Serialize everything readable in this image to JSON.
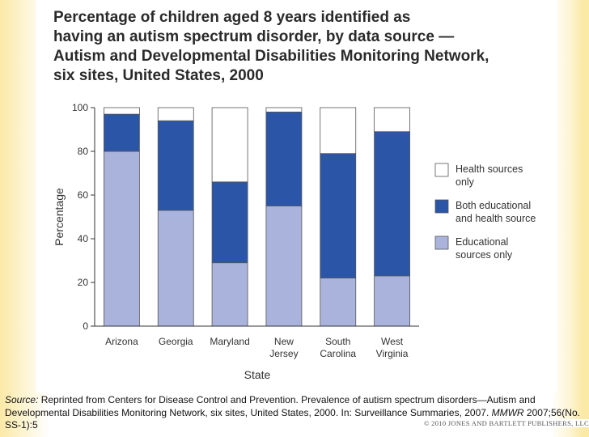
{
  "chart_data": {
    "type": "bar",
    "stacked": true,
    "title_lines": [
      "Percentage of children aged 8 years identified as",
      "having an autism spectrum disorder, by data source —",
      "Autism and Developmental Disabilities Monitoring Network,",
      "six sites, United States, 2000"
    ],
    "xlabel": "State",
    "ylabel": "Percentage",
    "ylim": [
      0,
      100
    ],
    "yticks": [
      0,
      20,
      40,
      60,
      80,
      100
    ],
    "categories": [
      {
        "lines": [
          "Arizona"
        ]
      },
      {
        "lines": [
          "Georgia"
        ]
      },
      {
        "lines": [
          "Maryland"
        ]
      },
      {
        "lines": [
          "New",
          "Jersey"
        ]
      },
      {
        "lines": [
          "South",
          "Carolina"
        ]
      },
      {
        "lines": [
          "West",
          "Virginia"
        ]
      }
    ],
    "series": [
      {
        "name_lines": [
          "Educational",
          "sources only"
        ],
        "color": "#a9b3dc",
        "values": [
          80,
          53,
          29,
          55,
          22,
          23
        ]
      },
      {
        "name_lines": [
          "Both educational",
          "and health source"
        ],
        "color": "#2b56a8",
        "values": [
          17,
          41,
          37,
          43,
          57,
          66
        ]
      },
      {
        "name_lines": [
          "Health sources",
          "only"
        ],
        "color": "#ffffff",
        "values": [
          3,
          6,
          34,
          2,
          21,
          11
        ]
      }
    ],
    "legend_position": "right",
    "grid": false
  },
  "source": {
    "label": "Source:",
    "text_pre": " Reprinted from Centers for Disease Control and Prevention. Prevalence of autism spectrum disorders—Autism and Developmental Disabilities Monitoring Network, six sites, United States, 2000. In: Surveillance Summaries, 2007. ",
    "journal": "MMWR",
    "text_post": " 2007;56(No. SS-1):5"
  },
  "copyright": "© 2010 JONES AND BARTLETT PUBLISHERS, LLC"
}
